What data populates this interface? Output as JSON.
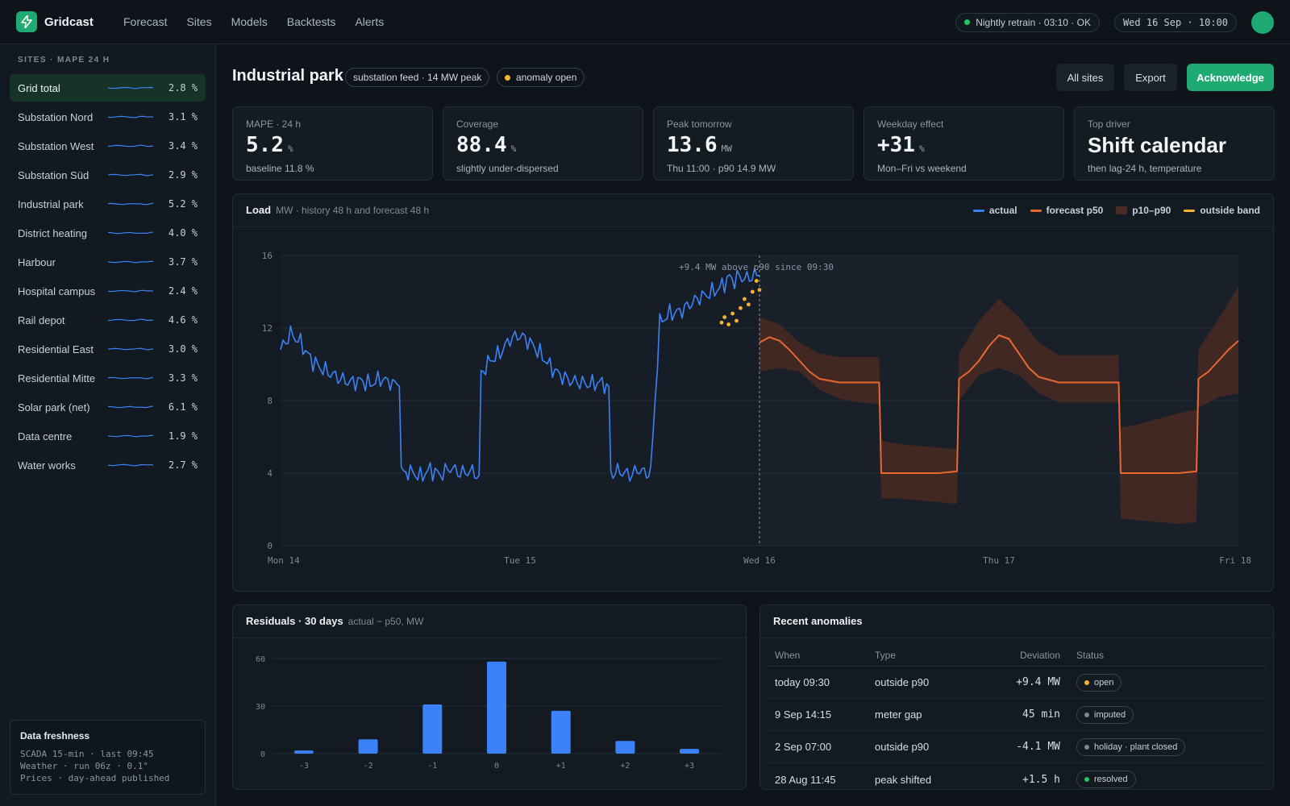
{
  "app": {
    "name": "Gridcast"
  },
  "nav": [
    "Forecast",
    "Sites",
    "Models",
    "Backtests",
    "Alerts"
  ],
  "status": {
    "retrain": "Nightly retrain · 03:10 · OK",
    "datetime": "Wed 16 Sep · 10:00",
    "ok_color": "#22c55e"
  },
  "sidebar": {
    "heading": "SITES · MAPE 24 H",
    "sites": [
      {
        "name": "Grid total",
        "mape": "2.8 %",
        "active": true
      },
      {
        "name": "Substation Nord",
        "mape": "3.1 %"
      },
      {
        "name": "Substation West",
        "mape": "3.4 %"
      },
      {
        "name": "Substation Süd",
        "mape": "2.9 %"
      },
      {
        "name": "Industrial park",
        "mape": "5.2 %"
      },
      {
        "name": "District heating",
        "mape": "4.0 %"
      },
      {
        "name": "Harbour",
        "mape": "3.7 %"
      },
      {
        "name": "Hospital campus",
        "mape": "2.4 %"
      },
      {
        "name": "Rail depot",
        "mape": "4.6 %"
      },
      {
        "name": "Residential East",
        "mape": "3.0 %"
      },
      {
        "name": "Residential Mitte",
        "mape": "3.3 %"
      },
      {
        "name": "Solar park (net)",
        "mape": "6.1 %"
      },
      {
        "name": "Data centre",
        "mape": "1.9 %"
      },
      {
        "name": "Water works",
        "mape": "2.7 %"
      }
    ],
    "freshness": {
      "title": "Data freshness",
      "lines": [
        "SCADA 15-min · last 09:45",
        "Weather · run 06z · 0.1°",
        "Prices · day-ahead published"
      ]
    }
  },
  "header": {
    "title": "Industrial park",
    "tag_feed": "substation feed · 14 MW peak",
    "tag_anomaly": "anomaly open",
    "btn_all_sites": "All sites",
    "btn_export": "Export",
    "btn_ack": "Acknowledge"
  },
  "kpis": [
    {
      "label": "MAPE · 24 h",
      "value": "5.2",
      "unit": "%",
      "sub": "baseline 11.8 %"
    },
    {
      "label": "Coverage",
      "value": "88.4",
      "unit": "%",
      "sub": "slightly under-dispersed"
    },
    {
      "label": "Peak tomorrow",
      "value": "13.6",
      "unit": "MW",
      "sub": "Thu 11:00 · p90 14.9 MW"
    },
    {
      "label": "Weekday effect",
      "value": "+31",
      "unit": "%",
      "sub": "Mon–Fri vs weekend"
    },
    {
      "label": "Top driver",
      "value": "Shift calendar",
      "unit": "",
      "sub": "then lag-24 h, temperature"
    }
  ],
  "load_panel": {
    "title": "Load",
    "subtitle": "MW · history 48 h and forecast 48 h",
    "legend": [
      "actual",
      "forecast p50",
      "p10–p90",
      "outside band"
    ],
    "annotation": "+9.4 MW above p90 since 09:30"
  },
  "residuals_panel": {
    "title": "Residuals · 30 days",
    "subtitle": "actual − p50, MW"
  },
  "anomalies_panel": {
    "title": "Recent anomalies",
    "columns": [
      "When",
      "Type",
      "Deviation",
      "Status"
    ],
    "rows": [
      {
        "when": "today 09:30",
        "type": "outside p90",
        "deviation": "+9.4 MW",
        "status": "open",
        "status_color": "#f5b32e"
      },
      {
        "when": "9 Sep 14:15",
        "type": "meter gap",
        "deviation": "45 min",
        "status": "imputed",
        "status_color": "#7c8792"
      },
      {
        "when": "2 Sep 07:00",
        "type": "outside p90",
        "deviation": "-4.1 MW",
        "status": "holiday · plant closed",
        "status_color": "#7c8792"
      },
      {
        "when": "28 Aug 11:45",
        "type": "peak shifted",
        "deviation": "+1.5 h",
        "status": "resolved",
        "status_color": "#22c55e"
      }
    ]
  },
  "colors": {
    "actual": "#3b82f6",
    "forecast": "#e8682f",
    "band": "#4a2a22",
    "outside": "#f5b32e",
    "accent": "#1faa73"
  },
  "chart_data": [
    {
      "type": "line",
      "title": "Load",
      "ylabel": "MW",
      "ylim": [
        0,
        16
      ],
      "y_ticks": [
        0,
        4,
        8,
        12,
        16
      ],
      "x_ticks": [
        "Mon 14",
        "Tue 15",
        "Wed 16",
        "Thu 17",
        "Fri 18"
      ],
      "xlim_hours": [
        0,
        96
      ],
      "now_hour": 48,
      "series": [
        {
          "name": "actual",
          "x_hours": [
            0,
            1,
            2,
            3,
            4,
            5,
            6,
            7,
            8,
            9,
            10,
            11,
            11.9,
            12.1,
            13,
            14,
            15,
            16,
            17,
            18,
            19,
            19.9,
            20.1,
            21,
            22,
            23,
            24,
            25,
            26,
            27,
            28,
            29,
            30,
            31,
            32,
            32.9,
            33.1,
            34,
            35,
            36,
            36.9,
            37.1,
            38,
            39,
            40,
            41,
            42,
            43,
            44,
            44.5,
            45,
            45.5,
            46,
            46.5,
            47,
            47.5,
            48
          ],
          "values": [
            10.8,
            11.7,
            11.2,
            10.3,
            9.8,
            9.5,
            9.2,
            9.0,
            9.1,
            8.9,
            9.2,
            9.0,
            8.8,
            4.0,
            4.1,
            3.8,
            4.2,
            3.9,
            4.3,
            4.0,
            4.1,
            3.9,
            9.5,
            10.2,
            10.6,
            11.4,
            11.6,
            11.2,
            10.6,
            9.9,
            9.4,
            9.1,
            9.0,
            8.9,
            9.0,
            8.8,
            4.0,
            4.1,
            3.9,
            4.2,
            3.8,
            4.0,
            12.3,
            12.8,
            12.9,
            13.3,
            13.7,
            13.9,
            14.2,
            14.5,
            14.8,
            14.6,
            14.9,
            14.7,
            14.8,
            14.9,
            14.9
          ]
        },
        {
          "name": "forecast p50",
          "x_hours": [
            48,
            49,
            50,
            51,
            52,
            53,
            54,
            56,
            58,
            60,
            60.2,
            62,
            64,
            66,
            67.8,
            68,
            69,
            70,
            71,
            72,
            73,
            74,
            75,
            76,
            78,
            80,
            82,
            84,
            84.2,
            86,
            88,
            90,
            91.8,
            92,
            93,
            94,
            95,
            96
          ],
          "values": [
            11.2,
            11.5,
            11.3,
            10.8,
            10.2,
            9.6,
            9.2,
            9.0,
            9.0,
            9.0,
            4.0,
            4.0,
            4.0,
            4.0,
            4.1,
            9.2,
            9.6,
            10.2,
            11.0,
            11.6,
            11.4,
            10.6,
            9.8,
            9.3,
            9.0,
            9.0,
            9.0,
            9.0,
            4.0,
            4.0,
            4.0,
            4.0,
            4.1,
            9.2,
            9.6,
            10.2,
            10.8,
            11.3
          ]
        },
        {
          "name": "p10–p90 (upper)",
          "x_hours": [
            48,
            50,
            52,
            54,
            56,
            58,
            60,
            60.2,
            62,
            64,
            66,
            67.8,
            68,
            70,
            72,
            74,
            76,
            78,
            80,
            82,
            84,
            84.2,
            86,
            88,
            90,
            91.8,
            92,
            94,
            96
          ],
          "values": [
            12.6,
            12.2,
            11.2,
            10.6,
            10.4,
            10.4,
            10.4,
            5.8,
            5.6,
            5.5,
            5.4,
            5.3,
            10.6,
            12.4,
            13.6,
            12.6,
            11.2,
            10.5,
            10.5,
            10.5,
            10.5,
            6.5,
            6.7,
            7.0,
            7.3,
            7.5,
            10.8,
            12.5,
            14.3
          ]
        },
        {
          "name": "p10–p90 (lower)",
          "x_hours": [
            48,
            50,
            52,
            54,
            56,
            58,
            60,
            60.2,
            62,
            64,
            66,
            67.8,
            68,
            70,
            72,
            74,
            76,
            78,
            80,
            82,
            84,
            84.2,
            86,
            88,
            90,
            91.8,
            92,
            94,
            96
          ],
          "values": [
            9.6,
            9.8,
            9.6,
            8.6,
            8.1,
            7.9,
            7.8,
            2.6,
            2.6,
            2.5,
            2.4,
            2.3,
            8.0,
            9.4,
            9.8,
            9.4,
            8.4,
            7.9,
            7.9,
            7.9,
            7.9,
            1.5,
            1.4,
            1.3,
            1.2,
            1.3,
            7.6,
            8.2,
            8.4
          ]
        },
        {
          "name": "outside band",
          "x_hours": [
            44.2,
            44.5,
            44.9,
            45.3,
            45.7,
            46.1,
            46.5,
            46.9,
            47.3,
            47.7,
            48
          ],
          "values": [
            12.3,
            12.6,
            12.2,
            12.8,
            12.4,
            13.1,
            13.6,
            13.3,
            14.0,
            14.6,
            14.1
          ]
        }
      ]
    },
    {
      "type": "bar",
      "title": "Residuals · 30 days",
      "xlabel": "actual − p50, MW",
      "categories": [
        "-3",
        "-2",
        "-1",
        "0",
        "+1",
        "+2",
        "+3"
      ],
      "values": [
        2,
        9,
        31,
        58,
        27,
        8,
        3
      ],
      "y_ticks": [
        0,
        30,
        60
      ],
      "ylim": [
        0,
        60
      ]
    }
  ]
}
